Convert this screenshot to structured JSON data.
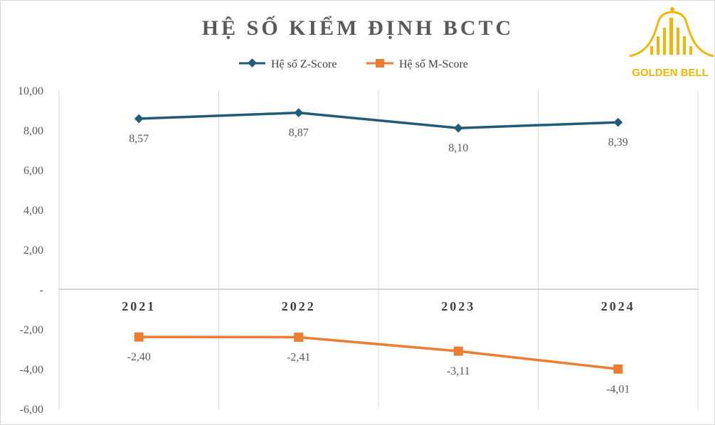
{
  "chart_data": {
    "type": "line",
    "title": "HỆ SỐ KIỂM ĐỊNH BCTC",
    "categories": [
      "2021",
      "2022",
      "2023",
      "2024"
    ],
    "series": [
      {
        "name": "Hệ số Z-Score",
        "values": [
          8.57,
          8.87,
          8.1,
          8.39
        ],
        "labels": [
          "8,57",
          "8,87",
          "8,10",
          "8,39"
        ],
        "color": "#1f5c78",
        "marker": "diamond"
      },
      {
        "name": "Hệ số M-Score",
        "values": [
          -2.4,
          -2.41,
          -3.11,
          -4.01
        ],
        "labels": [
          "-2,40",
          "-2,41",
          "-3,11",
          "-4,01"
        ],
        "color": "#ed7d31",
        "marker": "square"
      }
    ],
    "ylim": [
      -6,
      10
    ],
    "yticks": [
      10,
      8,
      6,
      4,
      2,
      0,
      -2,
      -4,
      -6
    ],
    "ytick_labels": [
      "10,00",
      "8,00",
      "6,00",
      "4,00",
      "2,00",
      "-",
      "-2,00",
      "-4,00",
      "-6,00"
    ],
    "grid": "vertical",
    "legend_position": "top-center",
    "xlabel": "",
    "ylabel": ""
  },
  "logo": {
    "text": "GOLDEN BELL",
    "icon": "golden-bell-logo",
    "color": "#f2b705"
  }
}
